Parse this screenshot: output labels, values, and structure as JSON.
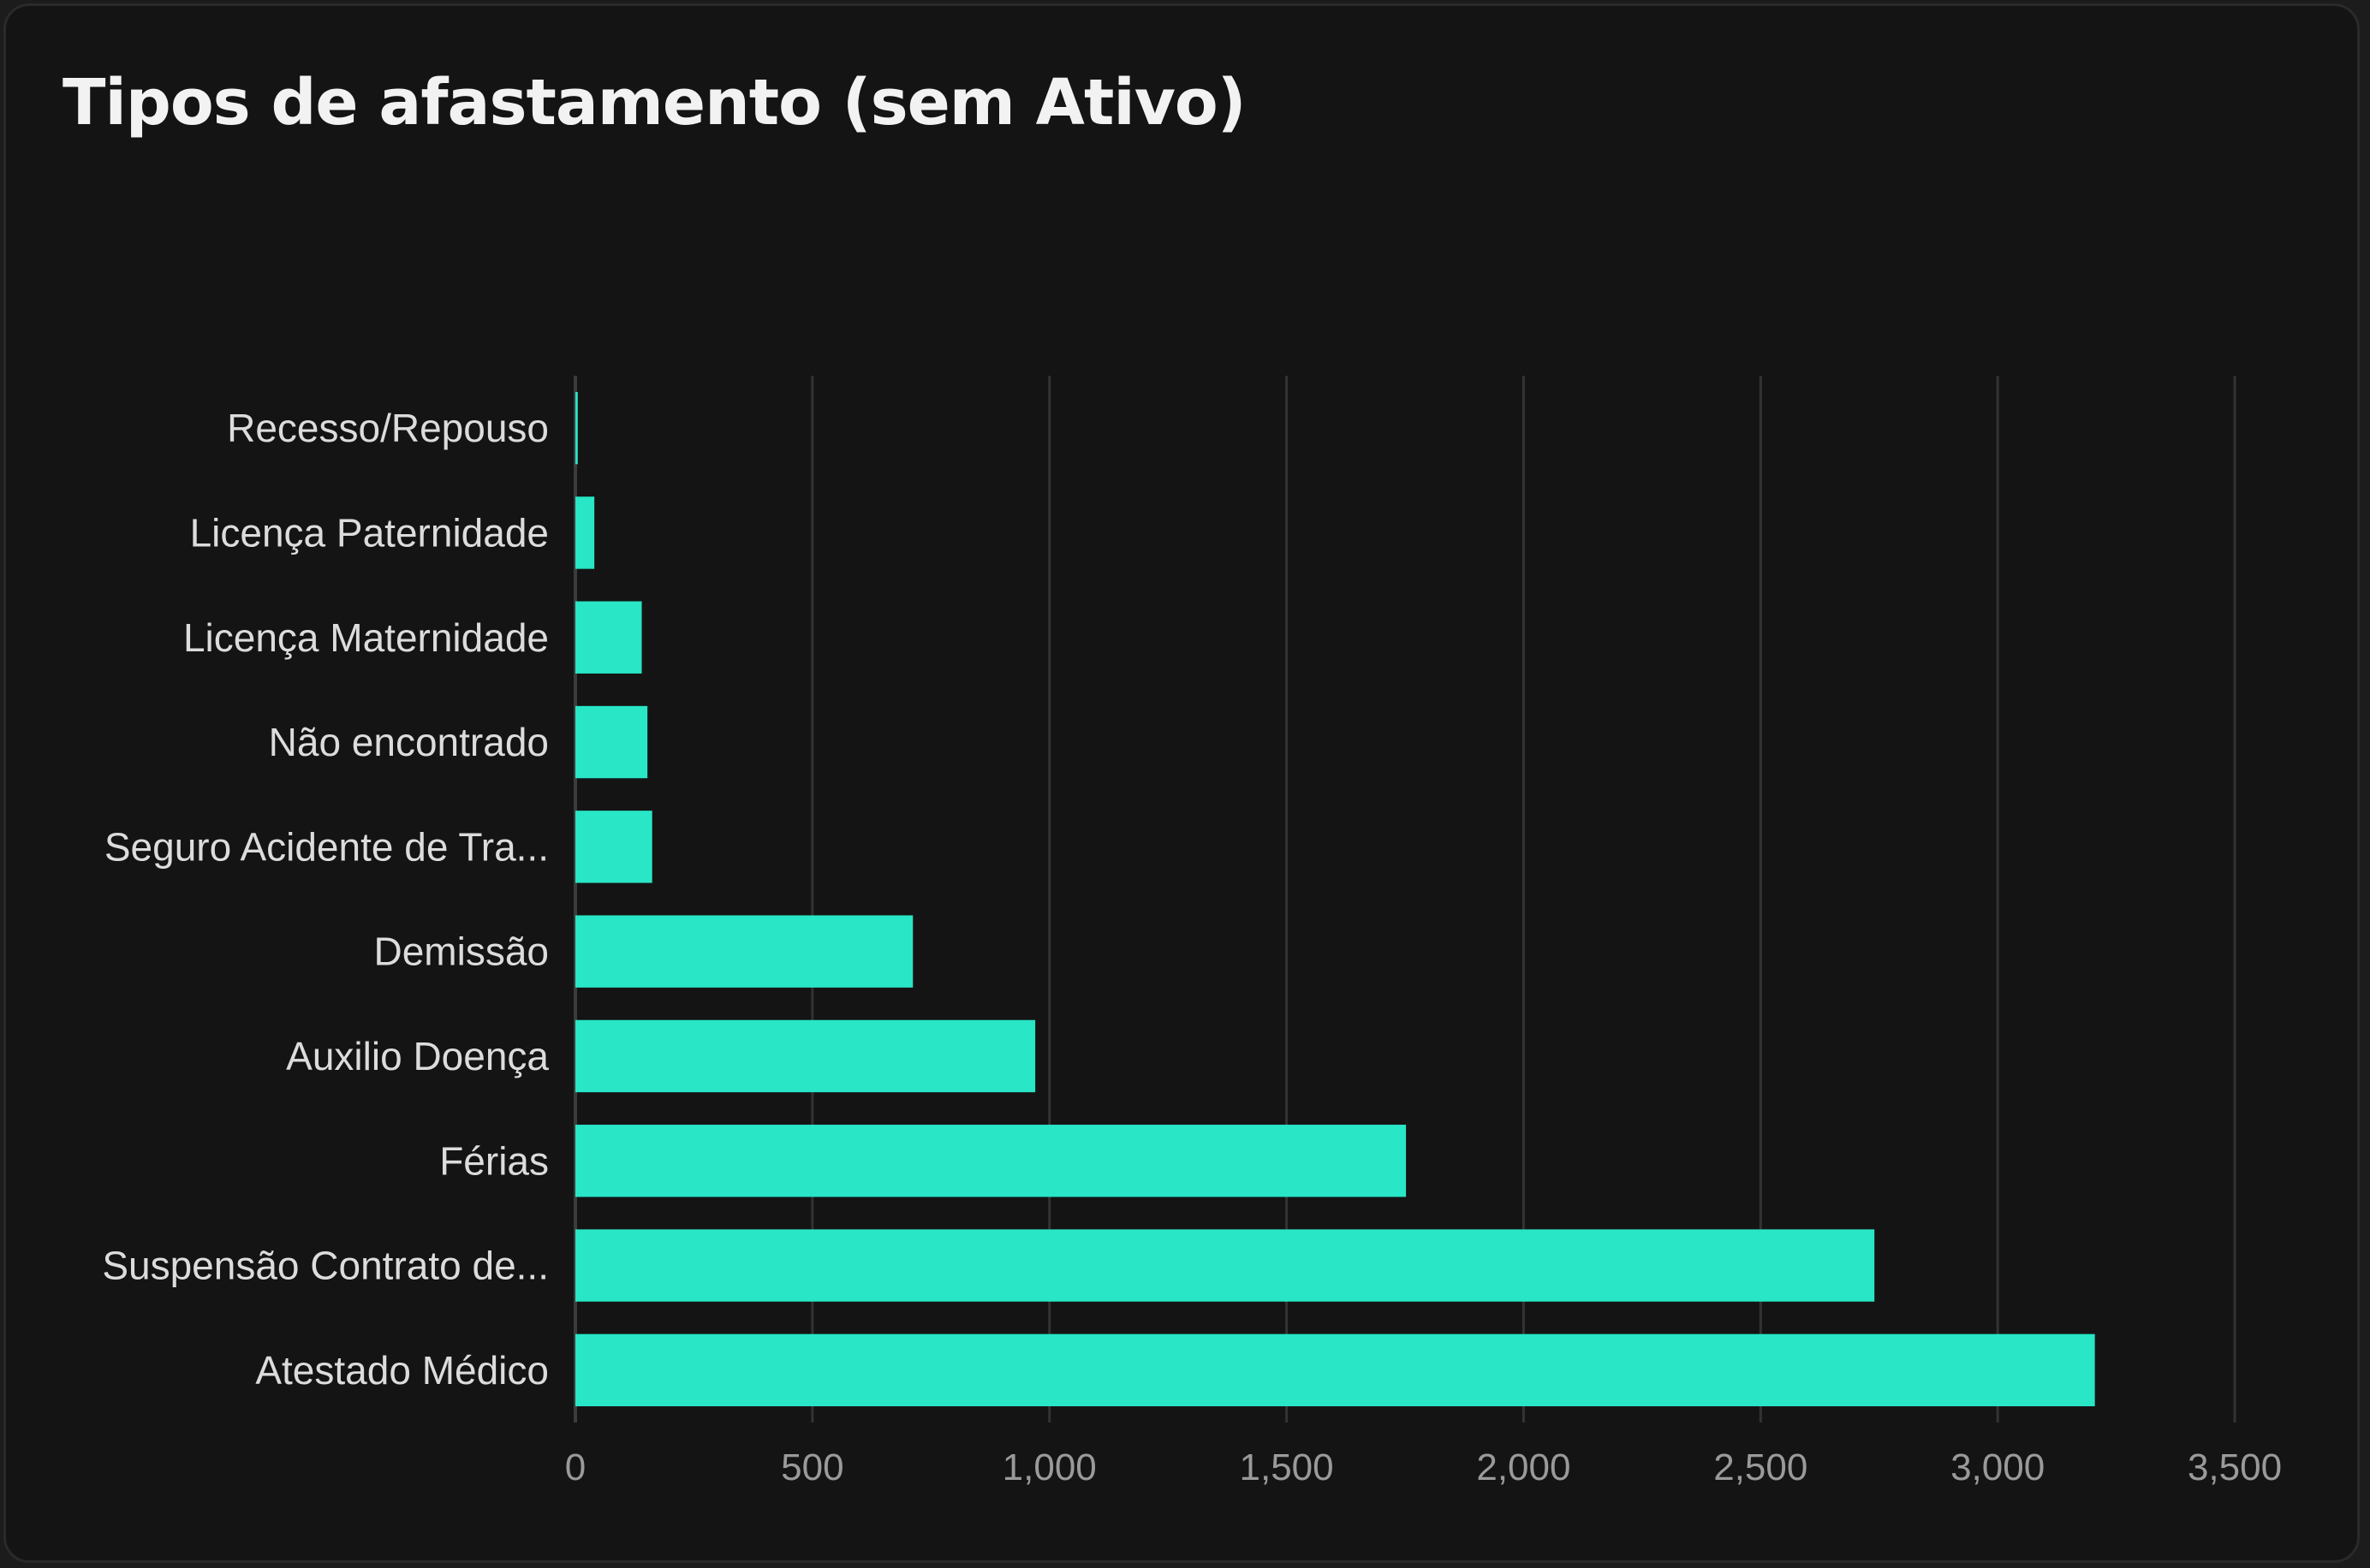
{
  "chart_data": {
    "type": "bar",
    "orientation": "horizontal",
    "title": "Tipos de afastamento (sem Ativo)",
    "categories": [
      "Recesso/Repouso",
      "Licença Paternidade",
      "Licença Maternidade",
      "Não encontrado",
      "Seguro Acidente de Tra...",
      "Demissão",
      "Auxilio Doença",
      "Férias",
      "Suspensão Contrato de...",
      "Atestado Médico"
    ],
    "values": [
      5,
      40,
      140,
      152,
      162,
      712,
      970,
      1752,
      2740,
      3205
    ],
    "xlim": [
      0,
      3500
    ],
    "xticks": [
      0,
      500,
      1000,
      1500,
      2000,
      2500,
      3000,
      3500
    ],
    "xtick_labels": [
      "0",
      "500",
      "1,000",
      "1,500",
      "2,000",
      "2,500",
      "3,000",
      "3,500"
    ],
    "grid": true,
    "colors": {
      "bar": "#28e6c6",
      "grid": "#333333",
      "axis": "#3c3c3c",
      "background": "#141414"
    }
  }
}
